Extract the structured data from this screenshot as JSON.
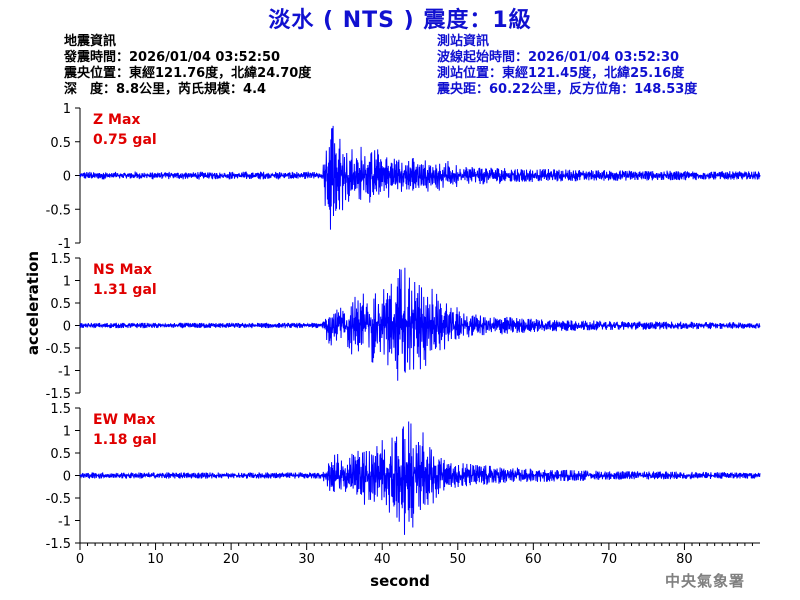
{
  "header": {
    "title": "淡水 ( NTS ) 震度：1級"
  },
  "quake_info": {
    "heading": "地震資訊",
    "origin_time": "發震時間：2026/01/04 03:52:50",
    "epicenter": "震央位置：東經121.76度，北緯24.70度",
    "depth_magnitude": "深　度：8.8公里，芮氏規模：4.4"
  },
  "station_info": {
    "heading": "測站資訊",
    "wave_start": "波線起始時間：2026/01/04 03:52:30",
    "station_location": "測站位置：東經121.45度，北緯25.16度",
    "distance": "震央距：60.22公里，反方位角：148.53度"
  },
  "footer": {
    "agency": "中央氣象署"
  },
  "colors": {
    "trace": "#0000ff",
    "max_label": "#e00000",
    "title": "#1010d0",
    "axis": "#000000"
  },
  "chart_data": {
    "type": "line",
    "xlabel": "second",
    "ylabel": "acceleration",
    "x_range": [
      0,
      90
    ],
    "x_ticks": [
      "0",
      "10",
      "20",
      "30",
      "40",
      "50",
      "60",
      "70",
      "80"
    ],
    "panels": [
      {
        "name": "Z",
        "max_label": "Z Max",
        "max_value": "0.75 gal",
        "ylim": [
          -1,
          1
        ],
        "y_ticks": [
          "1",
          "0.5",
          "0",
          "-0.5",
          "-1"
        ],
        "envelope": [
          [
            0,
            0.05
          ],
          [
            32,
            0.05
          ],
          [
            32.5,
            0.45
          ],
          [
            33.5,
            0.75
          ],
          [
            34.5,
            0.55
          ],
          [
            36,
            0.4
          ],
          [
            40,
            0.3
          ],
          [
            45,
            0.22
          ],
          [
            50,
            0.15
          ],
          [
            60,
            0.1
          ],
          [
            70,
            0.08
          ],
          [
            90,
            0.06
          ]
        ]
      },
      {
        "name": "NS",
        "max_label": "NS Max",
        "max_value": "1.31 gal",
        "ylim": [
          -1.5,
          1.5
        ],
        "y_ticks": [
          "1.5",
          "1",
          "0.5",
          "0",
          "-0.5",
          "-1",
          "-1.5"
        ],
        "envelope": [
          [
            0,
            0.06
          ],
          [
            32,
            0.06
          ],
          [
            33,
            0.4
          ],
          [
            36,
            0.55
          ],
          [
            40,
            0.8
          ],
          [
            43,
            1.31
          ],
          [
            45,
            0.9
          ],
          [
            48,
            0.45
          ],
          [
            52,
            0.25
          ],
          [
            60,
            0.15
          ],
          [
            70,
            0.1
          ],
          [
            90,
            0.07
          ]
        ]
      },
      {
        "name": "EW",
        "max_label": "EW Max",
        "max_value": "1.18 gal",
        "ylim": [
          -1.5,
          1.5
        ],
        "y_ticks": [
          "1.5",
          "1",
          "0.5",
          "0",
          "-0.5",
          "-1",
          "-1.5"
        ],
        "envelope": [
          [
            0,
            0.07
          ],
          [
            32,
            0.07
          ],
          [
            33,
            0.35
          ],
          [
            37,
            0.5
          ],
          [
            41,
            0.75
          ],
          [
            43.8,
            1.18
          ],
          [
            45,
            0.8
          ],
          [
            48,
            0.4
          ],
          [
            52,
            0.25
          ],
          [
            60,
            0.15
          ],
          [
            70,
            0.1
          ],
          [
            90,
            0.07
          ]
        ]
      }
    ]
  }
}
